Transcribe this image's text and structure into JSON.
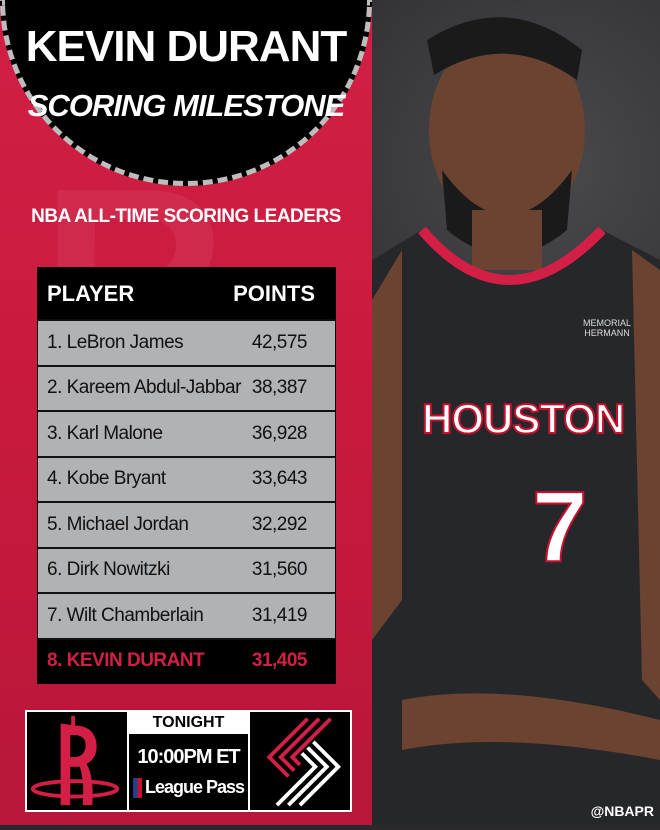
{
  "header": {
    "title": "KEVIN DURANT",
    "subtitle": "SCORING MILESTONE"
  },
  "section_title": "NBA ALL-TIME SCORING LEADERS",
  "table": {
    "columns": [
      "PLAYER",
      "POINTS"
    ],
    "rows": [
      {
        "player": "1. LeBron James",
        "points": "42,575"
      },
      {
        "player": "2. Kareem Abdul-Jabbar",
        "points": "38,387"
      },
      {
        "player": "3. Karl Malone",
        "points": "36,928"
      },
      {
        "player": "4. Kobe Bryant",
        "points": "33,643"
      },
      {
        "player": "5. Michael Jordan",
        "points": "32,292"
      },
      {
        "player": "6. Dirk Nowitzki",
        "points": "31,560"
      },
      {
        "player": "7. Wilt Chamberlain",
        "points": "31,419"
      },
      {
        "player": "8. KEVIN DURANT",
        "points": "31,405",
        "highlight": true
      }
    ]
  },
  "game": {
    "label": "TONIGHT",
    "time": "10:00PM ET",
    "network": "League Pass",
    "home_logo": "rockets-logo",
    "away_logo": "trail-blazers-logo"
  },
  "photo": {
    "jersey_text": "HOUSTON",
    "jersey_number": "7",
    "sponsor": "MEMORIAL HERMANN"
  },
  "handle": "@NBAPR",
  "colors": {
    "accent": "#d31f45",
    "table_row": "#b0b2b4",
    "dark": "#000000"
  }
}
